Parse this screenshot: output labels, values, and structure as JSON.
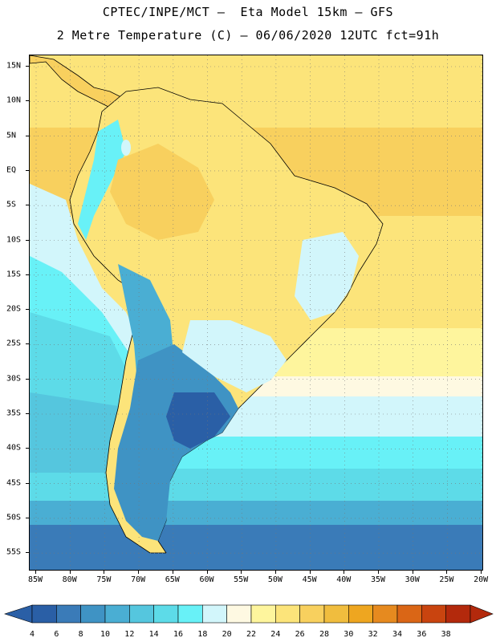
{
  "header": {
    "line1": "CPTEC/INPE/MCT –  Eta Model 15km – GFS",
    "line2": "2 Metre Temperature (C) – 06/06/2020 12UTC fct=91h"
  },
  "axes": {
    "lat_labels": [
      "15N",
      "10N",
      "5N",
      "EQ",
      "5S",
      "10S",
      "15S",
      "20S",
      "25S",
      "30S",
      "35S",
      "40S",
      "45S",
      "50S",
      "55S"
    ],
    "lon_labels": [
      "85W",
      "80W",
      "75W",
      "70W",
      "65W",
      "60W",
      "55W",
      "50W",
      "45W",
      "40W",
      "35W",
      "30W",
      "25W",
      "20W"
    ]
  },
  "colorbar": {
    "labels": [
      "4",
      "6",
      "8",
      "10",
      "12",
      "14",
      "16",
      "18",
      "20",
      "22",
      "24",
      "26",
      "28",
      "30",
      "32",
      "34",
      "36",
      "38"
    ],
    "colors": [
      "#2a5fa6",
      "#3a7bb8",
      "#3f93c4",
      "#4aaed3",
      "#55c6de",
      "#5ddbe8",
      "#68f1f7",
      "#d2f6fb",
      "#fef9e2",
      "#fef59d",
      "#fce47a",
      "#f8d05e",
      "#f0bd3e",
      "#eea620",
      "#e68a1f",
      "#da6616",
      "#c9440f",
      "#b3290c"
    ],
    "left_arrow_color": "#2a5fa6",
    "right_arrow_color": "#b3290c"
  },
  "map_colors": {
    "t6": "#2a5fa6",
    "t8": "#3a7bb8",
    "t10": "#3f93c4",
    "t12": "#4aaed3",
    "t14": "#55c6de",
    "t16": "#5ddbe8",
    "t18": "#68f1f7",
    "t20": "#d2f6fb",
    "t22": "#fef9e2",
    "t24": "#fef59d",
    "t26": "#fce47a",
    "t28": "#f8d05e",
    "t30": "#f0bd3e",
    "t32": "#eea620"
  }
}
